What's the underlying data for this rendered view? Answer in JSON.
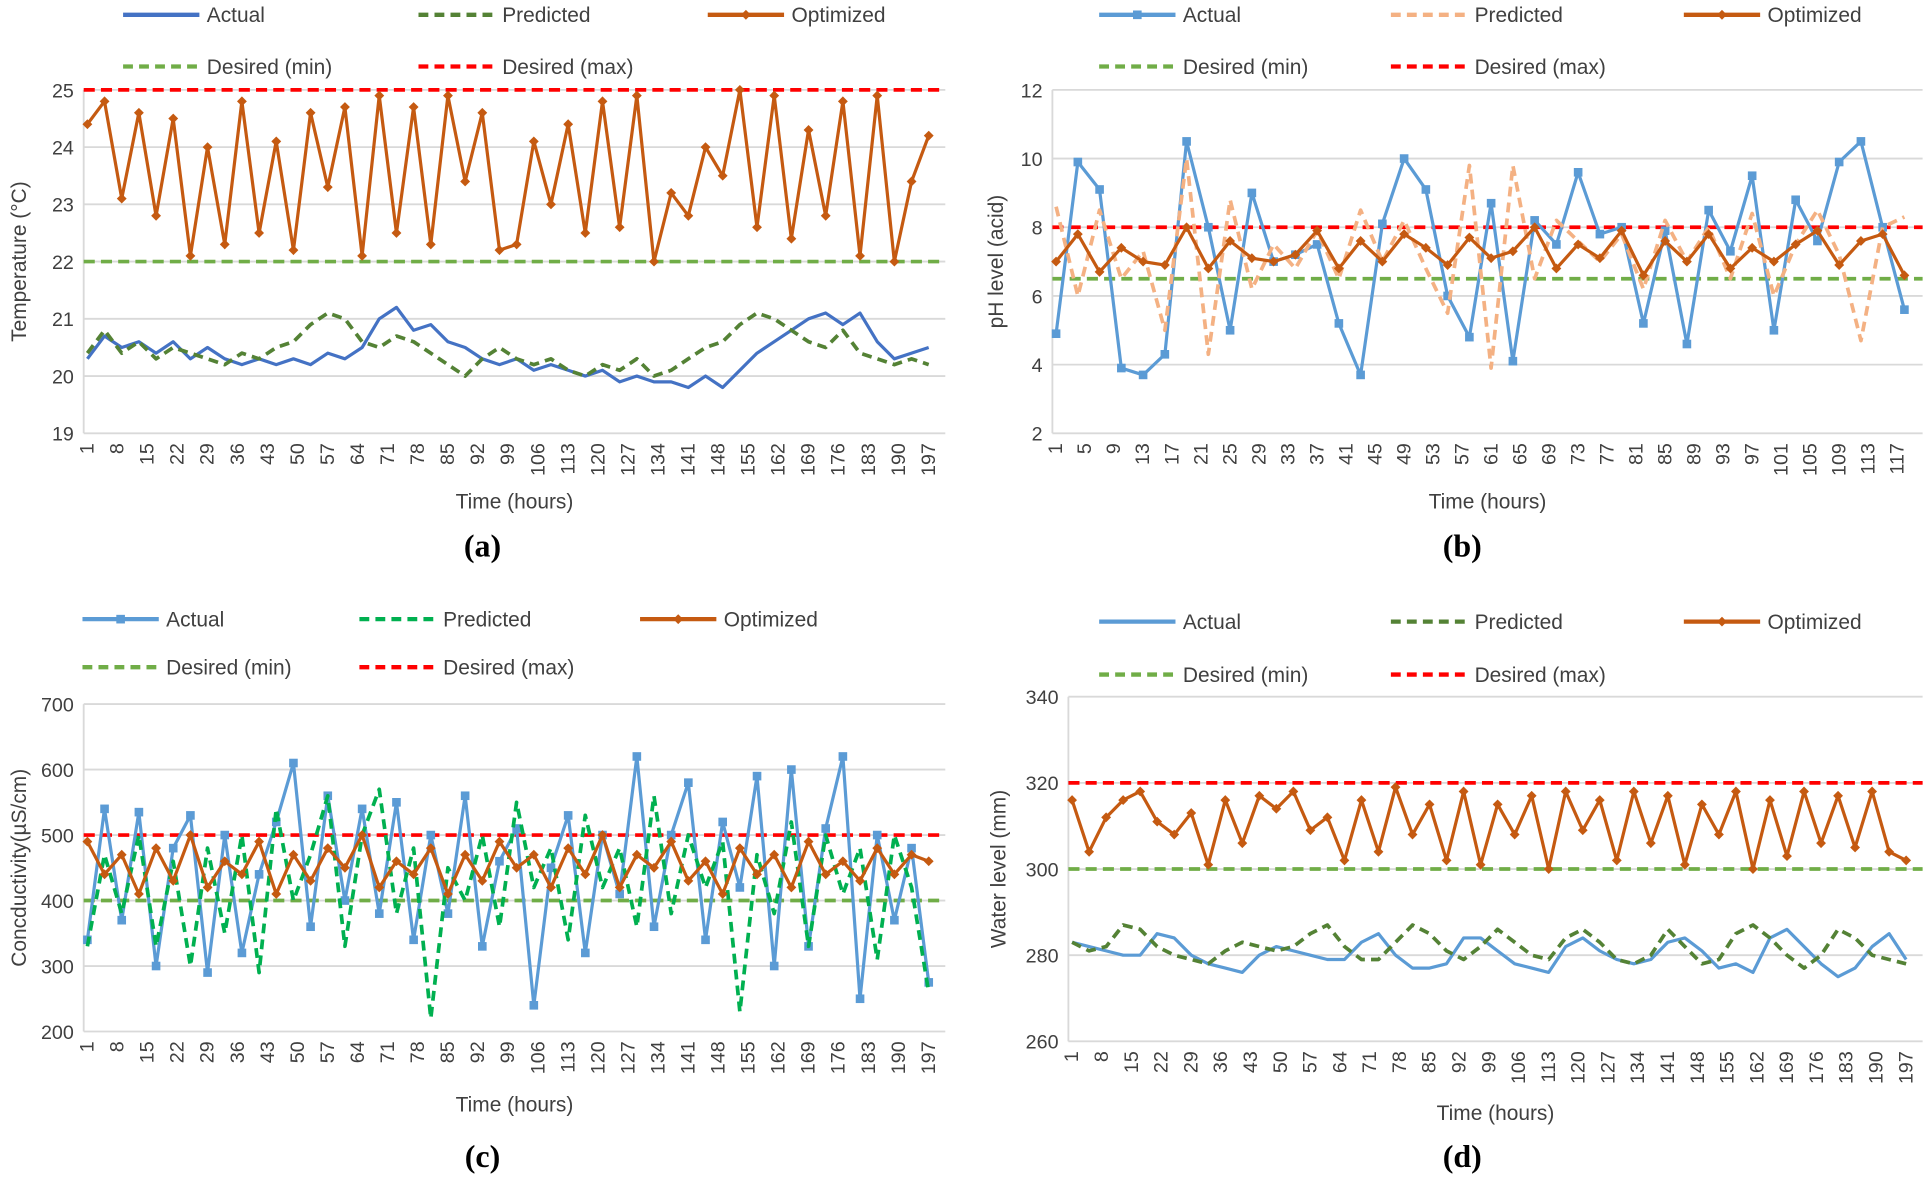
{
  "colors": {
    "optimized": "#C55A11",
    "desired_min": "#70AD47",
    "desired_max": "#FF0000",
    "grid": "#D9D9D9"
  },
  "chart_data": [
    {
      "panel_label": "(a)",
      "type": "line",
      "xlabel": "Time (hours)",
      "ylabel": "Temperature (°C)",
      "ylim": [
        19,
        25
      ],
      "yticks": [
        19,
        20,
        21,
        22,
        23,
        24,
        25
      ],
      "xlim": [
        1,
        200
      ],
      "x_tick_labels": [
        "1",
        "8",
        "15",
        "22",
        "29",
        "36",
        "43",
        "50",
        "57",
        "64",
        "71",
        "78",
        "85",
        "92",
        "99",
        "106",
        "113",
        "120",
        "127",
        "134",
        "141",
        "148",
        "155",
        "162",
        "169",
        "176",
        "183",
        "190",
        "197"
      ],
      "grid": true,
      "legend": "top",
      "x": [
        1,
        5,
        9,
        13,
        17,
        21,
        25,
        29,
        33,
        37,
        41,
        45,
        49,
        53,
        57,
        61,
        65,
        69,
        73,
        77,
        81,
        85,
        89,
        93,
        97,
        101,
        105,
        109,
        113,
        117,
        121,
        125,
        129,
        133,
        137,
        141,
        145,
        149,
        153,
        157,
        161,
        165,
        169,
        173,
        177,
        181,
        185,
        189,
        193,
        197
      ],
      "series": [
        {
          "name": "Actual",
          "color": "#4472C4",
          "style": "solid",
          "marker": "none",
          "values": [
            20.3,
            20.7,
            20.5,
            20.6,
            20.4,
            20.6,
            20.3,
            20.5,
            20.3,
            20.2,
            20.3,
            20.2,
            20.3,
            20.2,
            20.4,
            20.3,
            20.5,
            21.0,
            21.2,
            20.8,
            20.9,
            20.6,
            20.5,
            20.3,
            20.2,
            20.3,
            20.1,
            20.2,
            20.1,
            20.0,
            20.1,
            19.9,
            20.0,
            19.9,
            19.9,
            19.8,
            20.0,
            19.8,
            20.1,
            20.4,
            20.6,
            20.8,
            21.0,
            21.1,
            20.9,
            21.1,
            20.6,
            20.3,
            20.4,
            20.5
          ]
        },
        {
          "name": "Predicted",
          "color": "#548235",
          "style": "dashed",
          "marker": "none",
          "values": [
            20.4,
            20.8,
            20.4,
            20.6,
            20.3,
            20.5,
            20.4,
            20.3,
            20.2,
            20.4,
            20.3,
            20.5,
            20.6,
            20.9,
            21.1,
            21.0,
            20.6,
            20.5,
            20.7,
            20.6,
            20.4,
            20.2,
            20.0,
            20.3,
            20.5,
            20.3,
            20.2,
            20.3,
            20.1,
            20.0,
            20.2,
            20.1,
            20.3,
            20.0,
            20.1,
            20.3,
            20.5,
            20.6,
            20.9,
            21.1,
            21.0,
            20.8,
            20.6,
            20.5,
            20.8,
            20.4,
            20.3,
            20.2,
            20.3,
            20.2
          ]
        },
        {
          "name": "Optimized",
          "color": "#C55A11",
          "style": "solid",
          "marker": "diamond",
          "values": [
            24.4,
            24.8,
            23.1,
            24.6,
            22.8,
            24.5,
            22.1,
            24.0,
            22.3,
            24.8,
            22.5,
            24.1,
            22.2,
            24.6,
            23.3,
            24.7,
            22.1,
            24.9,
            22.5,
            24.7,
            22.3,
            24.9,
            23.4,
            24.6,
            22.2,
            22.3,
            24.1,
            23.0,
            24.4,
            22.5,
            24.8,
            22.6,
            24.9,
            22.0,
            23.2,
            22.8,
            24.0,
            23.5,
            25.0,
            22.6,
            24.9,
            22.4,
            24.3,
            22.8,
            24.8,
            22.1,
            24.9,
            22.0,
            23.4,
            24.2
          ]
        }
      ],
      "reference_lines": [
        {
          "name": "Desired (min)",
          "value": 22,
          "color": "#70AD47"
        },
        {
          "name": "Desired (max)",
          "value": 25,
          "color": "#FF0000"
        }
      ]
    },
    {
      "panel_label": "(b)",
      "type": "line",
      "xlabel": "Time (hours)",
      "ylabel": "pH level (acid)",
      "ylim": [
        2,
        12
      ],
      "yticks": [
        2,
        4,
        6,
        8,
        10,
        12
      ],
      "xlim": [
        1,
        120
      ],
      "x_tick_labels": [
        "1",
        "5",
        "9",
        "13",
        "17",
        "21",
        "25",
        "29",
        "33",
        "37",
        "41",
        "45",
        "49",
        "53",
        "57",
        "61",
        "65",
        "69",
        "73",
        "77",
        "81",
        "85",
        "89",
        "93",
        "97",
        "101",
        "105",
        "109",
        "113",
        "117"
      ],
      "grid": true,
      "legend": "top",
      "x": [
        1,
        4,
        7,
        10,
        13,
        16,
        19,
        22,
        25,
        28,
        31,
        34,
        37,
        40,
        43,
        46,
        49,
        52,
        55,
        58,
        61,
        64,
        67,
        70,
        73,
        76,
        79,
        82,
        85,
        88,
        91,
        94,
        97,
        100,
        103,
        106,
        109,
        112,
        115,
        118
      ],
      "series": [
        {
          "name": "Actual",
          "color": "#5B9BD5",
          "style": "solid",
          "marker": "square",
          "values": [
            4.9,
            9.9,
            9.1,
            3.9,
            3.7,
            4.3,
            10.5,
            8.0,
            5.0,
            9.0,
            7.0,
            7.2,
            7.5,
            5.2,
            3.7,
            8.1,
            10.0,
            9.1,
            6.0,
            4.8,
            8.7,
            4.1,
            8.2,
            7.5,
            9.6,
            7.8,
            8.0,
            5.2,
            7.9,
            4.6,
            8.5,
            7.3,
            9.5,
            5.0,
            8.8,
            7.6,
            9.9,
            10.5,
            8.0,
            5.6
          ]
        },
        {
          "name": "Predicted",
          "color": "#F4B183",
          "style": "dashed",
          "marker": "none",
          "values": [
            8.6,
            6.0,
            8.5,
            6.5,
            7.3,
            5.0,
            10.0,
            4.3,
            8.8,
            6.2,
            7.5,
            6.8,
            7.9,
            6.5,
            8.5,
            7.0,
            8.2,
            6.8,
            5.5,
            9.8,
            3.9,
            9.8,
            6.5,
            8.2,
            7.6,
            7.0,
            7.8,
            6.2,
            8.2,
            7.0,
            8.0,
            6.5,
            8.4,
            6.0,
            7.5,
            8.5,
            7.2,
            4.7,
            8.0,
            8.3
          ]
        },
        {
          "name": "Optimized",
          "color": "#C55A11",
          "style": "solid",
          "marker": "diamond",
          "values": [
            7.0,
            7.8,
            6.7,
            7.4,
            7.0,
            6.9,
            8.0,
            6.8,
            7.6,
            7.1,
            7.0,
            7.2,
            7.9,
            6.8,
            7.6,
            7.0,
            7.8,
            7.4,
            6.9,
            7.7,
            7.1,
            7.3,
            8.0,
            6.8,
            7.5,
            7.1,
            7.9,
            6.6,
            7.6,
            7.0,
            7.8,
            6.8,
            7.4,
            7.0,
            7.5,
            7.9,
            6.9,
            7.6,
            7.8,
            6.6
          ]
        }
      ],
      "reference_lines": [
        {
          "name": "Desired (min)",
          "value": 6.5,
          "color": "#70AD47"
        },
        {
          "name": "Desired (max)",
          "value": 8,
          "color": "#FF0000"
        }
      ]
    },
    {
      "panel_label": "(c)",
      "type": "line",
      "xlabel": "Time (hours)",
      "ylabel": "Concductivity(µS/cm)",
      "ylim": [
        200,
        700
      ],
      "yticks": [
        200,
        300,
        400,
        500,
        600,
        700
      ],
      "xlim": [
        1,
        200
      ],
      "x_tick_labels": [
        "1",
        "8",
        "15",
        "22",
        "29",
        "36",
        "43",
        "50",
        "57",
        "64",
        "71",
        "78",
        "85",
        "92",
        "99",
        "106",
        "113",
        "120",
        "127",
        "134",
        "141",
        "148",
        "155",
        "162",
        "169",
        "176",
        "183",
        "190",
        "197"
      ],
      "grid": true,
      "legend": "top",
      "x": [
        1,
        5,
        9,
        13,
        17,
        21,
        25,
        29,
        33,
        37,
        41,
        45,
        49,
        53,
        57,
        61,
        65,
        69,
        73,
        77,
        81,
        85,
        89,
        93,
        97,
        101,
        105,
        109,
        113,
        117,
        121,
        125,
        129,
        133,
        137,
        141,
        145,
        149,
        153,
        157,
        161,
        165,
        169,
        173,
        177,
        181,
        185,
        189,
        193,
        197
      ],
      "series": [
        {
          "name": "Actual",
          "color": "#5B9BD5",
          "style": "solid",
          "marker": "square",
          "values": [
            340,
            540,
            370,
            535,
            300,
            480,
            530,
            290,
            500,
            320,
            440,
            520,
            610,
            360,
            560,
            400,
            540,
            380,
            550,
            340,
            500,
            380,
            560,
            330,
            460,
            510,
            240,
            450,
            530,
            320,
            500,
            410,
            620,
            360,
            500,
            580,
            340,
            520,
            420,
            590,
            300,
            600,
            330,
            510,
            620,
            250,
            500,
            370,
            480,
            275
          ]
        },
        {
          "name": "Predicted",
          "color": "#00B050",
          "style": "dashed",
          "marker": "none",
          "values": [
            330,
            470,
            380,
            500,
            330,
            460,
            300,
            480,
            350,
            500,
            290,
            540,
            400,
            470,
            560,
            330,
            500,
            570,
            380,
            480,
            220,
            450,
            400,
            500,
            360,
            550,
            420,
            480,
            340,
            530,
            420,
            480,
            360,
            560,
            380,
            500,
            420,
            490,
            230,
            470,
            380,
            520,
            330,
            500,
            410,
            480,
            310,
            500,
            420,
            260
          ]
        },
        {
          "name": "Optimized",
          "color": "#C55A11",
          "style": "solid",
          "marker": "diamond",
          "values": [
            490,
            440,
            470,
            410,
            480,
            430,
            500,
            420,
            460,
            440,
            490,
            410,
            470,
            430,
            480,
            450,
            500,
            420,
            460,
            440,
            480,
            410,
            470,
            430,
            490,
            450,
            470,
            420,
            480,
            440,
            500,
            420,
            470,
            450,
            490,
            430,
            460,
            410,
            480,
            440,
            470,
            420,
            490,
            440,
            460,
            430,
            480,
            440,
            470,
            460
          ]
        }
      ],
      "reference_lines": [
        {
          "name": "Desired (min)",
          "value": 400,
          "color": "#70AD47"
        },
        {
          "name": "Desired (max)",
          "value": 500,
          "color": "#FF0000"
        }
      ]
    },
    {
      "panel_label": "(d)",
      "type": "line",
      "xlabel": "Time (hours)",
      "ylabel": "Water level (mm)",
      "ylim": [
        260,
        340
      ],
      "yticks": [
        260,
        280,
        300,
        320,
        340
      ],
      "xlim": [
        1,
        200
      ],
      "x_tick_labels": [
        "1",
        "8",
        "15",
        "22",
        "29",
        "36",
        "43",
        "50",
        "57",
        "64",
        "71",
        "78",
        "85",
        "92",
        "99",
        "106",
        "113",
        "120",
        "127",
        "134",
        "141",
        "148",
        "155",
        "162",
        "169",
        "176",
        "183",
        "190",
        "197"
      ],
      "grid": true,
      "legend": "top",
      "x": [
        1,
        5,
        9,
        13,
        17,
        21,
        25,
        29,
        33,
        37,
        41,
        45,
        49,
        53,
        57,
        61,
        65,
        69,
        73,
        77,
        81,
        85,
        89,
        93,
        97,
        101,
        105,
        109,
        113,
        117,
        121,
        125,
        129,
        133,
        137,
        141,
        145,
        149,
        153,
        157,
        161,
        165,
        169,
        173,
        177,
        181,
        185,
        189,
        193,
        197
      ],
      "series": [
        {
          "name": "Actual",
          "color": "#5B9BD5",
          "style": "solid",
          "marker": "none",
          "values": [
            283,
            282,
            281,
            280,
            280,
            285,
            284,
            280,
            278,
            277,
            276,
            280,
            282,
            281,
            280,
            279,
            279,
            283,
            285,
            280,
            277,
            277,
            278,
            284,
            284,
            281,
            278,
            277,
            276,
            282,
            284,
            281,
            279,
            278,
            279,
            283,
            284,
            281,
            277,
            278,
            276,
            284,
            286,
            282,
            278,
            275,
            277,
            282,
            285,
            279
          ]
        },
        {
          "name": "Predicted",
          "color": "#548235",
          "style": "dashed",
          "marker": "none",
          "values": [
            283,
            281,
            282,
            287,
            286,
            282,
            280,
            279,
            278,
            281,
            283,
            282,
            281,
            282,
            285,
            287,
            282,
            279,
            279,
            283,
            287,
            285,
            281,
            279,
            282,
            286,
            283,
            280,
            279,
            284,
            286,
            283,
            279,
            278,
            280,
            286,
            282,
            278,
            279,
            285,
            287,
            284,
            280,
            277,
            280,
            286,
            284,
            280,
            279,
            278
          ]
        },
        {
          "name": "Optimized",
          "color": "#C55A11",
          "style": "solid",
          "marker": "diamond",
          "values": [
            316,
            304,
            312,
            316,
            318,
            311,
            308,
            313,
            301,
            316,
            306,
            317,
            314,
            318,
            309,
            312,
            302,
            316,
            304,
            319,
            308,
            315,
            302,
            318,
            301,
            315,
            308,
            317,
            300,
            318,
            309,
            316,
            302,
            318,
            306,
            317,
            301,
            315,
            308,
            318,
            300,
            316,
            303,
            318,
            306,
            317,
            305,
            318,
            304,
            302
          ]
        }
      ],
      "reference_lines": [
        {
          "name": "Desired (min)",
          "value": 300,
          "color": "#70AD47"
        },
        {
          "name": "Desired (max)",
          "value": 320,
          "color": "#FF0000"
        }
      ]
    }
  ]
}
